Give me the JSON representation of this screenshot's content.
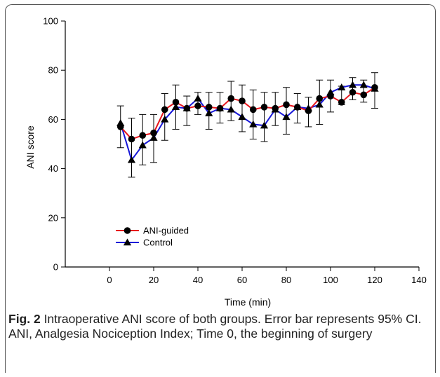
{
  "chart_data": {
    "type": "line",
    "title": "",
    "xlabel": "Time (min)",
    "ylabel": "ANI score",
    "xlim": [
      -20,
      140
    ],
    "ylim": [
      0,
      100
    ],
    "xticks": [
      0,
      20,
      40,
      60,
      80,
      100,
      120,
      140
    ],
    "yticks": [
      0,
      20,
      40,
      60,
      80,
      100
    ],
    "legend_position": "lower-left",
    "x": [
      5,
      10,
      15,
      20,
      25,
      30,
      35,
      40,
      45,
      50,
      55,
      60,
      65,
      70,
      75,
      80,
      85,
      90,
      95,
      100,
      105,
      110,
      115,
      120
    ],
    "series": [
      {
        "name": "ANI-guided",
        "marker": "circle",
        "color": "#e8151b",
        "values": [
          57,
          52,
          53.5,
          54.5,
          64,
          67,
          64.5,
          65.5,
          65,
          64.5,
          68.5,
          67.5,
          64,
          65,
          64.5,
          66,
          65,
          63.5,
          68.5,
          69.5,
          67,
          71,
          70,
          73
        ]
      },
      {
        "name": "Control",
        "marker": "triangle",
        "color": "#1616d8",
        "values": [
          58.5,
          43.5,
          49.5,
          52.5,
          60,
          65,
          64.5,
          68.5,
          62.5,
          64.5,
          64,
          61,
          58,
          57.5,
          64,
          61,
          65,
          64.5,
          66,
          71,
          73,
          74,
          74,
          72.5
        ]
      }
    ],
    "error_bars": [
      {
        "x": 5,
        "low": 48.5,
        "high": 65.5
      },
      {
        "x": 10,
        "low": 36.5,
        "high": 60.5
      },
      {
        "x": 15,
        "low": 41.5,
        "high": 62
      },
      {
        "x": 20,
        "low": 42.5,
        "high": 62
      },
      {
        "x": 25,
        "low": 51.5,
        "high": 70.5
      },
      {
        "x": 30,
        "low": 56,
        "high": 74
      },
      {
        "x": 35,
        "low": 57.5,
        "high": 69.5
      },
      {
        "x": 40,
        "low": 62,
        "high": 71
      },
      {
        "x": 45,
        "low": 56,
        "high": 71
      },
      {
        "x": 50,
        "low": 58.5,
        "high": 71
      },
      {
        "x": 55,
        "low": 59.5,
        "high": 75.5
      },
      {
        "x": 60,
        "low": 55,
        "high": 74
      },
      {
        "x": 65,
        "low": 52,
        "high": 72
      },
      {
        "x": 70,
        "low": 51,
        "high": 71
      },
      {
        "x": 75,
        "low": 57.5,
        "high": 71
      },
      {
        "x": 80,
        "low": 54,
        "high": 73
      },
      {
        "x": 85,
        "low": 58.5,
        "high": 70.5
      },
      {
        "x": 90,
        "low": 57,
        "high": 69
      },
      {
        "x": 95,
        "low": 58,
        "high": 76
      },
      {
        "x": 100,
        "low": 63,
        "high": 76
      },
      {
        "x": 105,
        "low": 66,
        "high": 73.5
      },
      {
        "x": 110,
        "low": 68,
        "high": 77
      },
      {
        "x": 115,
        "low": 67,
        "high": 76
      },
      {
        "x": 120,
        "low": 64.5,
        "high": 79
      }
    ]
  },
  "caption": {
    "label": "Fig. 2",
    "text": " Intraoperative ANI score of both groups. Error bar represents 95% CI. ANI, Analgesia Nociception Index; Time 0, the beginning of surgery"
  }
}
